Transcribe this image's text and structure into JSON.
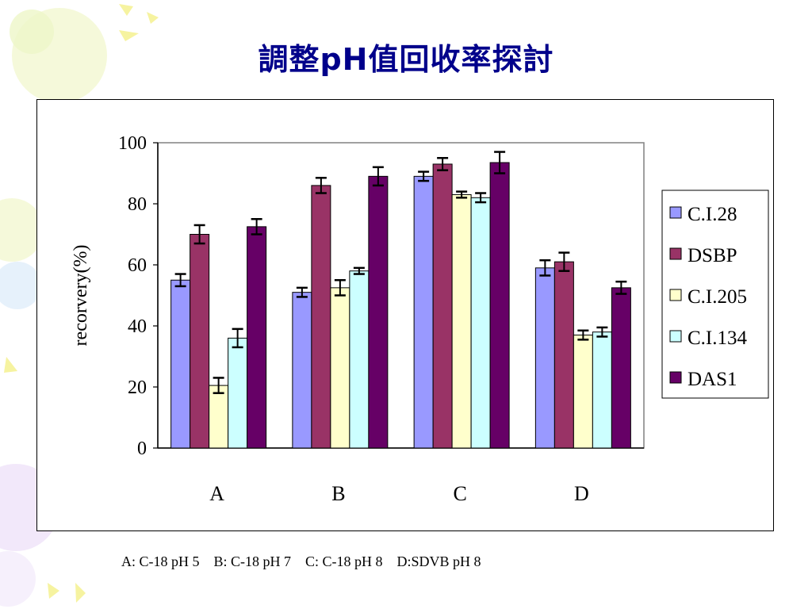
{
  "title": "調整pH值回收率探討",
  "caption": "A: C-18 pH 5    B: C-18 pH 7    C: C-18 pH 8    D:SDVB pH 8",
  "colors": {
    "C.I.28": "#9999ff",
    "DSBP": "#993366",
    "C.I.205": "#ffffcc",
    "C.I.134": "#ccffff",
    "DAS1": "#660066"
  },
  "chart_data": {
    "type": "bar",
    "title": "",
    "xlabel": "",
    "ylabel": "recorvery(%)",
    "ylim": [
      0,
      100
    ],
    "yticks": [
      0,
      20,
      40,
      60,
      80,
      100
    ],
    "grid": false,
    "legend_position": "right",
    "categories": [
      "A",
      "B",
      "C",
      "D"
    ],
    "series": [
      {
        "name": "C.I.28",
        "values": [
          55,
          51,
          89,
          59
        ],
        "errors": [
          2,
          1.5,
          1.5,
          2.5
        ]
      },
      {
        "name": "DSBP",
        "values": [
          70,
          86,
          93,
          61
        ],
        "errors": [
          3,
          2.5,
          2,
          3
        ]
      },
      {
        "name": "C.I.205",
        "values": [
          20.5,
          52.5,
          83,
          37
        ],
        "errors": [
          2.5,
          2.5,
          1,
          1.5
        ]
      },
      {
        "name": "C.I.134",
        "values": [
          36,
          58,
          82,
          38
        ],
        "errors": [
          3,
          1,
          1.5,
          1.5
        ]
      },
      {
        "name": "DAS1",
        "values": [
          72.5,
          89,
          93.5,
          52.5
        ],
        "errors": [
          2.5,
          3,
          3.5,
          2
        ]
      }
    ]
  }
}
